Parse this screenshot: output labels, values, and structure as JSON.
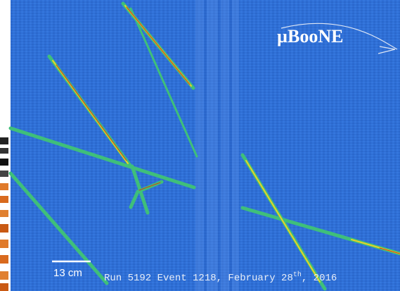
{
  "logo": "µBooNE",
  "scale_bar": "13 cm",
  "caption": {
    "text": "Run 5192 Event 1218, February 28",
    "superscript": "th",
    "tail": ", 2016"
  }
}
